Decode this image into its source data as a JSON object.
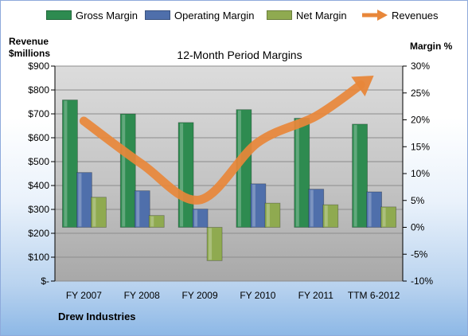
{
  "chart_data": {
    "type": "bar",
    "title": "12-Month Period Margins",
    "categories": [
      "FY 2007",
      "FY 2008",
      "FY 2009",
      "FY 2010",
      "FY 2011",
      "TTM 6-2012"
    ],
    "series": [
      {
        "name": "Gross Margin",
        "axis": "right",
        "kind": "bar",
        "color": "#2e8b50",
        "values": [
          23.7,
          21.1,
          19.5,
          21.9,
          20.3,
          19.2
        ]
      },
      {
        "name": "Operating Margin",
        "axis": "right",
        "kind": "bar",
        "color": "#4f6fab",
        "values": [
          10.2,
          6.8,
          3.4,
          8.1,
          7.1,
          6.6
        ]
      },
      {
        "name": "Net Margin",
        "axis": "right",
        "kind": "bar",
        "color": "#8faa50",
        "values": [
          5.6,
          2.2,
          -6.2,
          4.5,
          4.2,
          3.8
        ]
      },
      {
        "name": "Revenues",
        "axis": "left",
        "kind": "line",
        "color": "#e8873a",
        "values": [
          670,
          490,
          340,
          580,
          690,
          860
        ]
      }
    ],
    "left_axis": {
      "title_line1": "Revenue",
      "title_line2": "$millions",
      "ylim": [
        0,
        900
      ],
      "ticks": [
        "$-",
        "$100",
        "$200",
        "$300",
        "$400",
        "$500",
        "$600",
        "$700",
        "$800",
        "$900"
      ]
    },
    "right_axis": {
      "title": "Margin %",
      "ylim": [
        -10,
        30
      ],
      "ticks": [
        "-10%",
        "-5%",
        "0%",
        "5%",
        "10%",
        "15%",
        "20%",
        "25%",
        "30%"
      ]
    },
    "grid": true,
    "legend_position": "top"
  },
  "footer": {
    "company": "Drew Industries"
  }
}
